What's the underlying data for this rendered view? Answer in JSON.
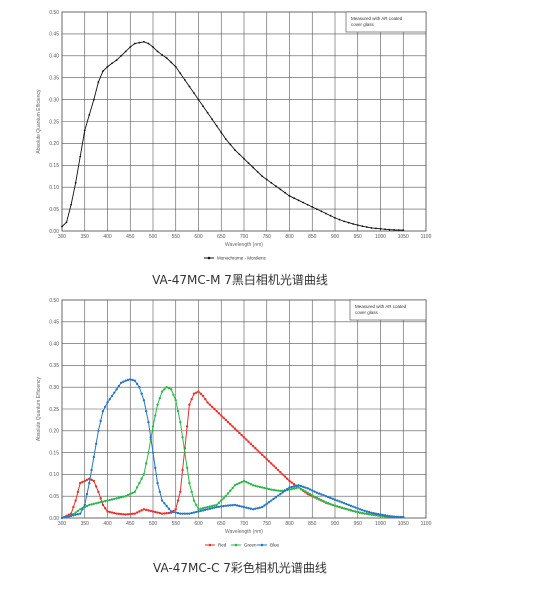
{
  "chart_data": [
    {
      "type": "line",
      "xlabel": "Wavelength (nm)",
      "ylabel": "Absolute Quantum Efficiency",
      "xlim": [
        300,
        1100
      ],
      "ylim": [
        0,
        0.5
      ],
      "x_ticks": [
        300,
        350,
        400,
        450,
        500,
        550,
        600,
        650,
        700,
        750,
        800,
        850,
        900,
        950,
        1000,
        1050,
        1100
      ],
      "y_ticks": [
        0.0,
        0.05,
        0.1,
        0.15,
        0.2,
        0.25,
        0.3,
        0.35,
        0.4,
        0.45,
        0.5
      ],
      "x_tick_labels": [
        "300",
        "350",
        "400",
        "450",
        "500",
        "550",
        "600",
        "650",
        "700",
        "750",
        "800",
        "850",
        "900",
        "950",
        "1000",
        "1050",
        "1100"
      ],
      "y_tick_labels": [
        "0.00",
        "0.05",
        "0.10",
        "0.15",
        "0.20",
        "0.25",
        "0.30",
        "0.35",
        "0.40",
        "0.45",
        "0.50"
      ],
      "grid": true,
      "annotation": [
        "Measured with AR coated",
        "cover glass"
      ],
      "legend": "bottom",
      "series": [
        {
          "name": "Monochrome - Mordiens",
          "color": "#111111",
          "x": [
            300,
            310,
            320,
            330,
            340,
            350,
            360,
            370,
            380,
            390,
            400,
            410,
            420,
            430,
            440,
            450,
            460,
            470,
            480,
            490,
            500,
            510,
            520,
            530,
            540,
            550,
            560,
            570,
            580,
            590,
            600,
            620,
            640,
            660,
            680,
            700,
            720,
            740,
            760,
            780,
            800,
            820,
            840,
            860,
            880,
            900,
            920,
            940,
            960,
            980,
            1000,
            1020,
            1040,
            1050
          ],
          "y": [
            0.01,
            0.02,
            0.06,
            0.11,
            0.17,
            0.23,
            0.265,
            0.3,
            0.34,
            0.365,
            0.375,
            0.383,
            0.39,
            0.4,
            0.41,
            0.42,
            0.428,
            0.43,
            0.432,
            0.428,
            0.42,
            0.41,
            0.402,
            0.395,
            0.385,
            0.375,
            0.36,
            0.345,
            0.33,
            0.315,
            0.3,
            0.27,
            0.24,
            0.21,
            0.185,
            0.165,
            0.145,
            0.125,
            0.11,
            0.095,
            0.08,
            0.07,
            0.06,
            0.05,
            0.04,
            0.03,
            0.022,
            0.016,
            0.011,
            0.007,
            0.005,
            0.003,
            0.002,
            0.002
          ]
        }
      ]
    },
    {
      "type": "line",
      "xlabel": "Wavelength (nm)",
      "ylabel": "Absolute Quantum Efficiency",
      "xlim": [
        300,
        1100
      ],
      "ylim": [
        0,
        0.5
      ],
      "x_ticks": [
        300,
        350,
        400,
        450,
        500,
        550,
        600,
        650,
        700,
        750,
        800,
        850,
        900,
        950,
        1000,
        1050,
        1100
      ],
      "y_ticks": [
        0.0,
        0.05,
        0.1,
        0.15,
        0.2,
        0.25,
        0.3,
        0.35,
        0.4,
        0.45,
        0.5
      ],
      "x_tick_labels": [
        "300",
        "350",
        "400",
        "450",
        "500",
        "550",
        "600",
        "650",
        "700",
        "750",
        "800",
        "850",
        "900",
        "950",
        "1000",
        "1050",
        "1100"
      ],
      "y_tick_labels": [
        "0.00",
        "0.05",
        "0.10",
        "0.15",
        "0.20",
        "0.25",
        "0.30",
        "0.35",
        "0.40",
        "0.45",
        "0.50"
      ],
      "grid": true,
      "annotation": [
        "Measured with AR coated",
        "cover glass"
      ],
      "legend": "bottom",
      "series": [
        {
          "name": "Red",
          "color": "#e8312b",
          "x": [
            300,
            320,
            330,
            340,
            350,
            360,
            370,
            380,
            390,
            400,
            420,
            440,
            460,
            480,
            500,
            520,
            540,
            550,
            560,
            570,
            580,
            590,
            600,
            610,
            620,
            640,
            660,
            680,
            700,
            720,
            740,
            760,
            780,
            800,
            820,
            840,
            860,
            880,
            900,
            920,
            940,
            960,
            980,
            1000,
            1020,
            1040,
            1050
          ],
          "y": [
            0.0,
            0.01,
            0.04,
            0.08,
            0.085,
            0.09,
            0.085,
            0.06,
            0.03,
            0.015,
            0.01,
            0.008,
            0.01,
            0.02,
            0.015,
            0.01,
            0.012,
            0.02,
            0.06,
            0.16,
            0.26,
            0.285,
            0.29,
            0.28,
            0.265,
            0.245,
            0.225,
            0.205,
            0.185,
            0.165,
            0.145,
            0.125,
            0.105,
            0.085,
            0.07,
            0.055,
            0.045,
            0.035,
            0.028,
            0.022,
            0.016,
            0.011,
            0.008,
            0.005,
            0.003,
            0.002,
            0.002
          ]
        },
        {
          "name": "Green",
          "color": "#2db84a",
          "x": [
            300,
            320,
            340,
            360,
            380,
            400,
            420,
            440,
            460,
            480,
            490,
            500,
            510,
            520,
            530,
            540,
            550,
            560,
            570,
            580,
            590,
            600,
            620,
            640,
            660,
            680,
            700,
            720,
            740,
            760,
            780,
            800,
            820,
            840,
            860,
            880,
            900,
            920,
            940,
            960,
            980,
            1000,
            1020,
            1040,
            1050
          ],
          "y": [
            0.0,
            0.005,
            0.02,
            0.03,
            0.035,
            0.04,
            0.045,
            0.05,
            0.06,
            0.1,
            0.15,
            0.21,
            0.26,
            0.29,
            0.3,
            0.295,
            0.27,
            0.22,
            0.15,
            0.08,
            0.04,
            0.02,
            0.025,
            0.03,
            0.05,
            0.075,
            0.085,
            0.075,
            0.07,
            0.065,
            0.062,
            0.065,
            0.07,
            0.058,
            0.046,
            0.036,
            0.028,
            0.022,
            0.016,
            0.011,
            0.008,
            0.005,
            0.003,
            0.002,
            0.002
          ]
        },
        {
          "name": "Blue",
          "color": "#2677c4",
          "x": [
            300,
            320,
            340,
            350,
            360,
            370,
            380,
            390,
            400,
            410,
            420,
            430,
            440,
            450,
            460,
            470,
            480,
            490,
            500,
            510,
            520,
            540,
            560,
            580,
            600,
            620,
            640,
            660,
            680,
            700,
            720,
            740,
            760,
            780,
            800,
            820,
            840,
            860,
            880,
            900,
            920,
            940,
            960,
            980,
            1000,
            1020,
            1040,
            1050
          ],
          "y": [
            0.0,
            0.005,
            0.01,
            0.03,
            0.08,
            0.14,
            0.2,
            0.245,
            0.265,
            0.28,
            0.295,
            0.31,
            0.315,
            0.318,
            0.315,
            0.3,
            0.27,
            0.22,
            0.15,
            0.08,
            0.04,
            0.015,
            0.01,
            0.01,
            0.015,
            0.02,
            0.025,
            0.028,
            0.03,
            0.025,
            0.02,
            0.025,
            0.04,
            0.055,
            0.07,
            0.075,
            0.068,
            0.058,
            0.05,
            0.042,
            0.034,
            0.026,
            0.018,
            0.012,
            0.008,
            0.004,
            0.002,
            0.002
          ]
        }
      ]
    }
  ],
  "captions": {
    "mono": "VA-47MC-M 7黑白相机光谱曲线",
    "color": "VA-47MC-C 7彩色相机光谱曲线"
  }
}
